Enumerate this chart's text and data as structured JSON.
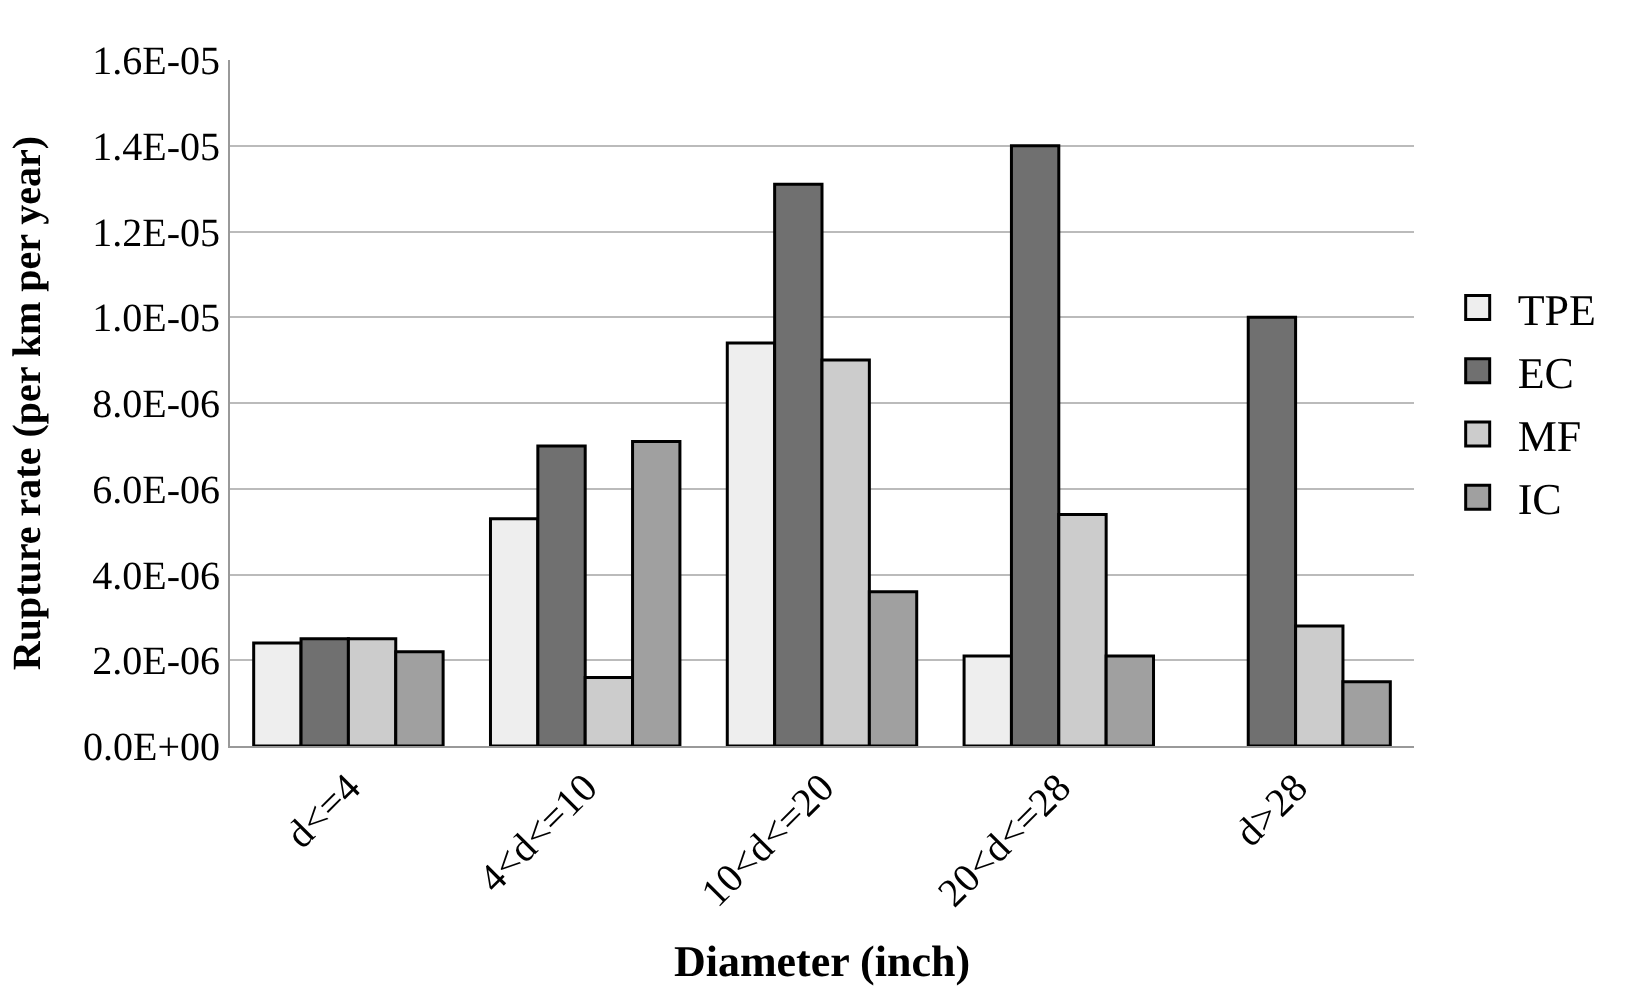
{
  "chart_data": {
    "type": "bar",
    "xlabel": "Diameter (inch)",
    "ylabel": "Rupture rate (per km per year)",
    "categories": [
      "d<=4",
      "4<d<=10",
      "10<d<=20",
      "20<d<=28",
      "d>28"
    ],
    "series": [
      {
        "name": "TPE",
        "color": "#eeeeee",
        "values": [
          2.4e-06,
          5.3e-06,
          9.4e-06,
          2.1e-06,
          null
        ]
      },
      {
        "name": "EC",
        "color": "#707070",
        "values": [
          2.5e-06,
          7e-06,
          1.31e-05,
          1.4e-05,
          1e-05
        ]
      },
      {
        "name": "MF",
        "color": "#cccccc",
        "values": [
          2.5e-06,
          1.6e-06,
          9e-06,
          5.4e-06,
          2.8e-06
        ]
      },
      {
        "name": "IC",
        "color": "#a0a0a0",
        "values": [
          2.2e-06,
          7.1e-06,
          3.6e-06,
          2.1e-06,
          1.5e-06
        ]
      }
    ],
    "ylim": [
      0,
      1.6e-05
    ],
    "yticks": [
      {
        "value": 0,
        "label": "0.0E+00"
      },
      {
        "value": 2e-06,
        "label": "2.0E-06"
      },
      {
        "value": 4e-06,
        "label": "4.0E-06"
      },
      {
        "value": 6e-06,
        "label": "6.0E-06"
      },
      {
        "value": 8e-06,
        "label": "8.0E-06"
      },
      {
        "value": 1e-05,
        "label": "1.0E-05"
      },
      {
        "value": 1.2e-05,
        "label": "1.2E-05"
      },
      {
        "value": 1.4e-05,
        "label": "1.4E-05"
      },
      {
        "value": 1.6e-05,
        "label": "1.6E-05"
      }
    ],
    "grid": "y",
    "legend": "right"
  }
}
